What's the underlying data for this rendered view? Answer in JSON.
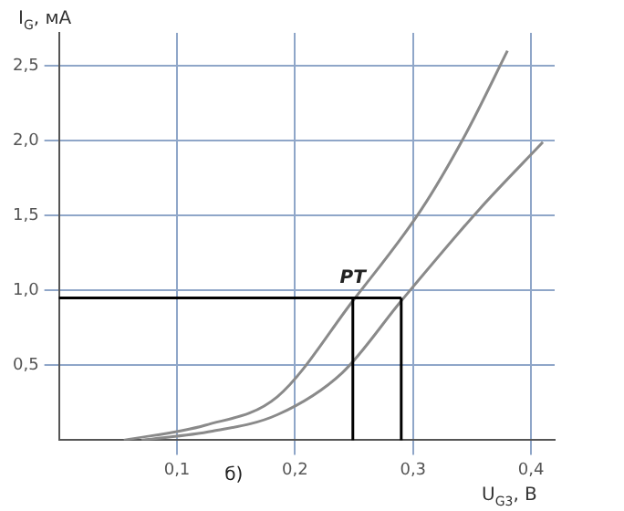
{
  "chart_data": {
    "type": "line",
    "xlabel": "U$_{G3}$, В",
    "ylabel": "I$_{G}$, мА",
    "annotations": [
      {
        "text": "PT",
        "x": 0.249,
        "y": 0.95
      },
      "б)"
    ],
    "series": [
      {
        "color": "#8a8a8a",
        "x": [
          0.055,
          0.124,
          0.185,
          0.249,
          0.307,
          0.345,
          0.38
        ],
        "values": [
          0,
          0.1,
          0.29,
          0.93,
          1.54,
          2.05,
          2.6
        ]
      },
      {
        "color": "#8a8a8a",
        "x": [
          0.07,
          0.13,
          0.185,
          0.24,
          0.29,
          0.356,
          0.41
        ],
        "values": [
          0,
          0.06,
          0.17,
          0.45,
          0.93,
          1.54,
          1.99
        ]
      }
    ],
    "ref_lines": [
      {
        "axis": "y",
        "value": 0.95,
        "color": "#000000"
      },
      {
        "axis": "x",
        "value": 0.249,
        "color": "#000000"
      },
      {
        "axis": "x",
        "value": 0.29,
        "color": "#000000"
      }
    ],
    "xlim": [
      0,
      0.42
    ],
    "xticks": [
      {
        "value": 0.1,
        "label": "0,1"
      },
      {
        "value": 0.2,
        "label": "0,2"
      },
      {
        "value": 0.3,
        "label": "0,3"
      },
      {
        "value": 0.4,
        "label": "0,4"
      }
    ],
    "ylim": [
      0,
      2.72
    ],
    "yticks": [
      {
        "value": 0.5,
        "label": "0,5"
      },
      {
        "value": 1.0,
        "label": "1,0"
      },
      {
        "value": 1.5,
        "label": "1,5"
      },
      {
        "value": 2.0,
        "label": "2,0"
      },
      {
        "value": 2.5,
        "label": "2,5"
      }
    ],
    "grid": true,
    "legend": false,
    "marker": "none",
    "line_style": "solid"
  }
}
